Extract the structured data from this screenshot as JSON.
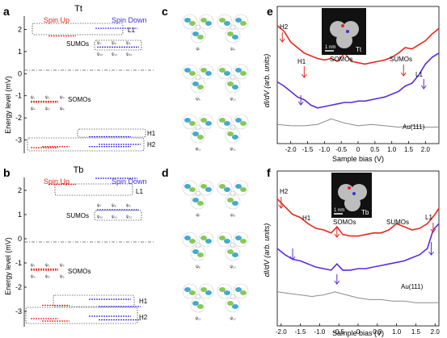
{
  "panel_letters": {
    "a": "a",
    "b": "b",
    "c": "c",
    "d": "d",
    "e": "e",
    "f": "f"
  },
  "colors": {
    "spin_up": "#e8281e",
    "spin_down": "#3b2fe0",
    "purple": "#5b2be0",
    "red": "#e8281e",
    "grey": "#8a8a8a",
    "lobe_blue": "#2fa2c8",
    "lobe_green": "#7cc242"
  },
  "chart_data": [
    {
      "panel": "a",
      "type": "scatter",
      "title": "Tt",
      "ylabel": "Energy level (mV)",
      "ylim": [
        -3.6,
        2.6
      ],
      "yticks": [
        "2",
        "1",
        "0",
        "-1",
        "-2",
        "-3"
      ],
      "legend": {
        "spin_up": "Spin Up",
        "spin_down": "Spin Down"
      },
      "labels": {
        "l1": "L1",
        "sumos": "SUMOs",
        "somos": "SOMOs",
        "h1": "H1",
        "h2": "H2"
      },
      "sumo_psis": [
        "ψ₇",
        "ψ₈",
        "ψ₉",
        "ψ₁₀",
        "ψ₁₁",
        "ψ₁₂"
      ],
      "somo_psis": [
        "ψ₁",
        "ψ₂",
        "ψ₃",
        "ψ₄",
        "ψ₅",
        "ψ₆"
      ],
      "up_levels": [
        1.7,
        -1.25,
        -1.3,
        -3.3,
        -3.35
      ],
      "down_levels": [
        2.05,
        1.2,
        -2.85,
        -3.2,
        -3.3
      ]
    },
    {
      "panel": "b",
      "type": "scatter",
      "title": "Tb",
      "ylabel": "Energy level (mV)",
      "ylim": [
        -3.6,
        2.6
      ],
      "yticks": [
        "2",
        "1",
        "0",
        "-1",
        "-2",
        "-3"
      ],
      "legend": {
        "spin_up": "Spin Up",
        "spin_down": "Spin Down"
      },
      "labels": {
        "l1": "L1",
        "sumos": "SUMOs",
        "somos": "SOMOs",
        "h1": "H1",
        "h2": "H2"
      },
      "sumo_psis": [
        "ψ₇",
        "ψ₈",
        "ψ₉",
        "ψ₁₀",
        "ψ₁₁",
        "ψ₁₂"
      ],
      "somo_psis": [
        "ψ₁",
        "ψ₂",
        "ψ₃",
        "ψ₄",
        "ψ₅",
        "ψ₆"
      ],
      "up_levels": [
        2.25,
        -1.25,
        -1.3,
        -2.75,
        -3.3,
        -3.4
      ],
      "down_levels": [
        2.5,
        1.2,
        -2.5,
        -2.8,
        -3.2,
        -3.35
      ]
    },
    {
      "panel": "e",
      "type": "line",
      "title": "",
      "xlabel": "Sample bias (V)",
      "ylabel": "dI/dV (arb. units)",
      "xlim": [
        -2.4,
        2.4
      ],
      "xticks": [
        "-2.0",
        "-1.5",
        "-1.0",
        "-0.5",
        "0",
        "0.5",
        "1.0",
        "1.5",
        "2.0"
      ],
      "annotations": {
        "h2": "H2",
        "h1": "H1",
        "somos": "SOMOs",
        "sumos": "SUMOs",
        "l1": "L1",
        "substrate": "Au(111)"
      },
      "inset": {
        "scalebar": "1 nm",
        "label": "Tt"
      },
      "series": [
        {
          "color": "red",
          "x": [
            -2.4,
            -2.2,
            -2.0,
            -1.8,
            -1.6,
            -1.4,
            -1.2,
            -1.0,
            -0.8,
            -0.6,
            -0.4,
            -0.2,
            0.0,
            0.2,
            0.4,
            0.6,
            0.8,
            1.0,
            1.2,
            1.4,
            1.6,
            1.8,
            2.0,
            2.2,
            2.4
          ],
          "y": [
            0.86,
            0.82,
            0.74,
            0.7,
            0.66,
            0.64,
            0.62,
            0.61,
            0.62,
            0.6,
            0.66,
            0.6,
            0.59,
            0.58,
            0.59,
            0.6,
            0.61,
            0.63,
            0.66,
            0.7,
            0.69,
            0.72,
            0.75,
            0.8,
            0.84
          ]
        },
        {
          "color": "purple",
          "x": [
            -2.4,
            -2.2,
            -2.0,
            -1.8,
            -1.6,
            -1.4,
            -1.2,
            -1.0,
            -0.8,
            -0.6,
            -0.4,
            -0.2,
            0.0,
            0.2,
            0.4,
            0.6,
            0.8,
            1.0,
            1.2,
            1.4,
            1.6,
            1.8,
            2.0,
            2.2,
            2.4
          ],
          "y": [
            0.45,
            0.42,
            0.38,
            0.34,
            0.32,
            0.28,
            0.26,
            0.27,
            0.28,
            0.29,
            0.3,
            0.3,
            0.31,
            0.31,
            0.32,
            0.33,
            0.34,
            0.36,
            0.38,
            0.42,
            0.44,
            0.5,
            0.58,
            0.63,
            0.66
          ]
        },
        {
          "color": "grey",
          "x": [
            -2.4,
            -2.0,
            -1.6,
            -1.2,
            -0.8,
            -0.4,
            0.0,
            0.4,
            0.8,
            1.2,
            1.6,
            2.0,
            2.4
          ],
          "y": [
            0.14,
            0.13,
            0.13,
            0.14,
            0.18,
            0.15,
            0.13,
            0.14,
            0.13,
            0.12,
            0.13,
            0.12,
            0.12
          ]
        }
      ]
    },
    {
      "panel": "f",
      "type": "line",
      "title": "",
      "xlabel": "Sample bias (V)",
      "ylabel": "dI/dV (arb. units)",
      "xlim": [
        -2.1,
        2.1
      ],
      "xticks": [
        "-2.0",
        "-1.5",
        "-1.0",
        "-0.5",
        "0",
        "0.5",
        "1.0",
        "1.5",
        "2.0"
      ],
      "annotations": {
        "h2": "H2",
        "h1": "H1",
        "somos": "SOMOs",
        "sumos": "SUMOs",
        "l1": "L1",
        "substrate": "Au(111)"
      },
      "inset": {
        "scalebar": "1 nm",
        "label": "Tb"
      },
      "series": [
        {
          "color": "red",
          "x": [
            -2.1,
            -1.9,
            -1.7,
            -1.5,
            -1.3,
            -1.1,
            -0.9,
            -0.7,
            -0.55,
            -0.4,
            -0.2,
            0.0,
            0.2,
            0.4,
            0.6,
            0.8,
            1.0,
            1.2,
            1.4,
            1.6,
            1.8,
            2.0,
            2.1
          ],
          "y": [
            0.82,
            0.77,
            0.72,
            0.7,
            0.66,
            0.63,
            0.62,
            0.6,
            0.64,
            0.59,
            0.58,
            0.58,
            0.59,
            0.6,
            0.6,
            0.62,
            0.66,
            0.64,
            0.62,
            0.63,
            0.66,
            0.72,
            0.76
          ]
        },
        {
          "color": "purple",
          "x": [
            -2.1,
            -1.9,
            -1.7,
            -1.5,
            -1.3,
            -1.1,
            -0.9,
            -0.7,
            -0.55,
            -0.4,
            -0.2,
            0.0,
            0.2,
            0.4,
            0.6,
            0.8,
            1.0,
            1.2,
            1.4,
            1.6,
            1.8,
            1.95,
            2.1
          ],
          "y": [
            0.5,
            0.46,
            0.43,
            0.42,
            0.4,
            0.38,
            0.37,
            0.36,
            0.4,
            0.36,
            0.36,
            0.37,
            0.37,
            0.38,
            0.39,
            0.4,
            0.41,
            0.42,
            0.44,
            0.46,
            0.5,
            0.62,
            0.66
          ]
        },
        {
          "color": "grey",
          "x": [
            -2.1,
            -1.8,
            -1.5,
            -1.2,
            -0.9,
            -0.6,
            -0.3,
            0.0,
            0.3,
            0.6,
            0.9,
            1.2,
            1.5,
            1.8,
            2.1
          ],
          "y": [
            0.22,
            0.21,
            0.2,
            0.19,
            0.2,
            0.22,
            0.2,
            0.18,
            0.17,
            0.17,
            0.16,
            0.16,
            0.15,
            0.15,
            0.15
          ]
        }
      ]
    }
  ],
  "orbitals_c": [
    [
      "ψ₁",
      "ψ₂"
    ],
    [
      "ψ₃",
      "ψ₄"
    ],
    [
      "ψ₅",
      "ψ₆"
    ]
  ],
  "orbitals_c_labels": [
    "ψ₇",
    "ψ₈",
    "ψ₉",
    "ψ₁₀",
    "ψ₁₁",
    "ψ₁₂"
  ],
  "orbitals_d_labels": [
    "ψ₇",
    "ψ₈",
    "ψ₉",
    "ψ₁₀",
    "ψ₁₁",
    "ψ₁₂"
  ]
}
